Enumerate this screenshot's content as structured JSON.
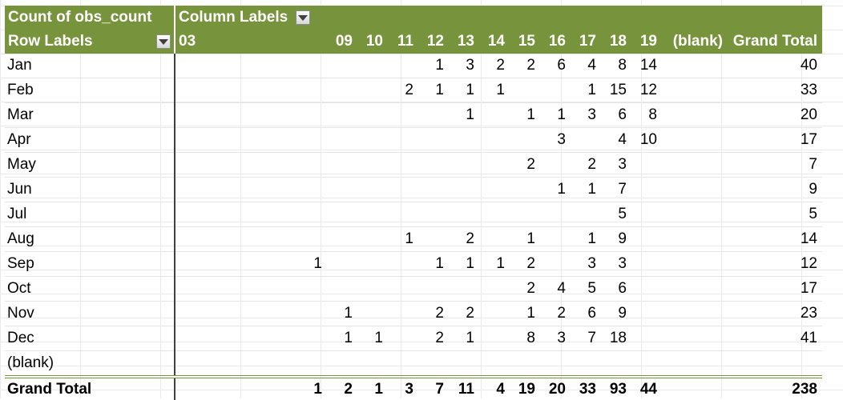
{
  "pivot": {
    "value_field": "Count of obs_count",
    "column_labels": "Column Labels",
    "row_labels": "Row Labels",
    "columns": [
      "03",
      "09",
      "10",
      "11",
      "12",
      "13",
      "14",
      "15",
      "16",
      "17",
      "18",
      "19",
      "(blank)",
      "Grand Total"
    ],
    "rows": [
      {
        "label": "Jan",
        "cells": [
          "",
          "",
          "",
          "",
          "1",
          "3",
          "2",
          "2",
          "6",
          "4",
          "8",
          "14",
          "",
          "40"
        ]
      },
      {
        "label": "Feb",
        "cells": [
          "",
          "",
          "",
          "2",
          "1",
          "1",
          "1",
          "",
          "",
          "1",
          "15",
          "12",
          "",
          "33"
        ]
      },
      {
        "label": "Mar",
        "cells": [
          "",
          "",
          "",
          "",
          "",
          "1",
          "",
          "1",
          "1",
          "3",
          "6",
          "8",
          "",
          "20"
        ]
      },
      {
        "label": "Apr",
        "cells": [
          "",
          "",
          "",
          "",
          "",
          "",
          "",
          "",
          "3",
          "",
          "4",
          "10",
          "",
          "17"
        ]
      },
      {
        "label": "May",
        "cells": [
          "",
          "",
          "",
          "",
          "",
          "",
          "",
          "2",
          "",
          "2",
          "3",
          "",
          "",
          "7"
        ]
      },
      {
        "label": "Jun",
        "cells": [
          "",
          "",
          "",
          "",
          "",
          "",
          "",
          "",
          "1",
          "1",
          "7",
          "",
          "",
          "9"
        ]
      },
      {
        "label": "Jul",
        "cells": [
          "",
          "",
          "",
          "",
          "",
          "",
          "",
          "",
          "",
          "",
          "5",
          "",
          "",
          "5"
        ]
      },
      {
        "label": "Aug",
        "cells": [
          "",
          "",
          "",
          "1",
          "",
          "2",
          "",
          "1",
          "",
          "1",
          "9",
          "",
          "",
          "14"
        ]
      },
      {
        "label": "Sep",
        "cells": [
          "1",
          "",
          "",
          "",
          "1",
          "1",
          "1",
          "2",
          "",
          "3",
          "3",
          "",
          "",
          "12"
        ]
      },
      {
        "label": "Oct",
        "cells": [
          "",
          "",
          "",
          "",
          "",
          "",
          "",
          "2",
          "4",
          "5",
          "6",
          "",
          "",
          "17"
        ]
      },
      {
        "label": "Nov",
        "cells": [
          "",
          "1",
          "",
          "",
          "2",
          "2",
          "",
          "1",
          "2",
          "6",
          "9",
          "",
          "",
          "23"
        ]
      },
      {
        "label": "Dec",
        "cells": [
          "",
          "1",
          "1",
          "",
          "2",
          "1",
          "",
          "8",
          "3",
          "7",
          "18",
          "",
          "",
          "41"
        ]
      },
      {
        "label": "(blank)",
        "cells": [
          "",
          "",
          "",
          "",
          "",
          "",
          "",
          "",
          "",
          "",
          "",
          "",
          "",
          ""
        ]
      }
    ],
    "grand_total": {
      "label": "Grand Total",
      "cells": [
        "1",
        "2",
        "1",
        "3",
        "7",
        "11",
        "4",
        "19",
        "20",
        "33",
        "93",
        "44",
        "",
        "238"
      ]
    }
  },
  "colors": {
    "header_green": "#77933c",
    "header_text": "#ffffff"
  }
}
